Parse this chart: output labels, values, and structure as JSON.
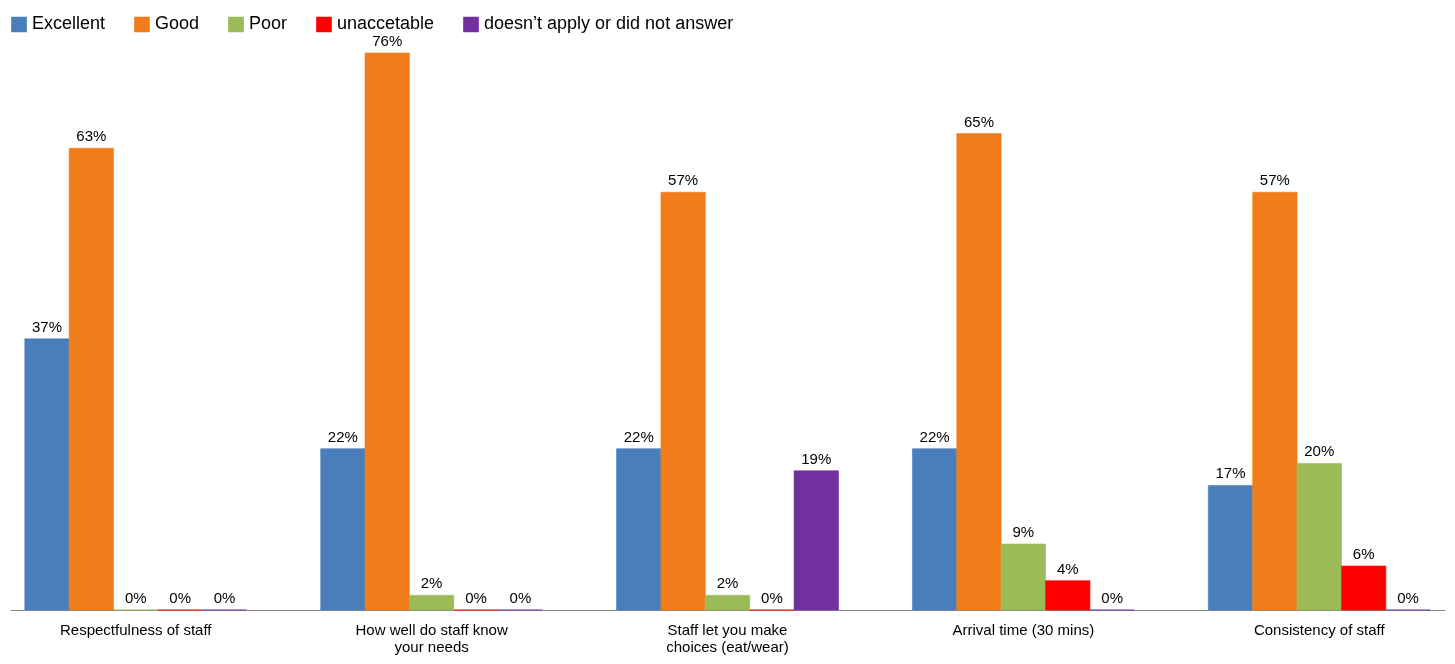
{
  "chart_data": {
    "type": "bar",
    "categories": [
      "Respectfulness of staff",
      "How well do staff know your needs",
      "Staff let you make choices (eat/wear)",
      "Arrival time (30 mins)",
      "Consistency of staff"
    ],
    "legend": "top",
    "series": [
      {
        "name": "Excellent",
        "color": "#4a7ebb",
        "values": [
          37,
          22,
          22,
          22,
          17
        ],
        "value_labels": [
          "37%",
          "22%",
          "22%",
          "22%",
          "17%"
        ]
      },
      {
        "name": "Good",
        "color": "#f07d1a",
        "values": [
          63,
          76,
          57,
          65,
          57
        ],
        "value_labels": [
          "63%",
          "76%",
          "57%",
          "65%",
          "57%"
        ]
      },
      {
        "name": "Poor",
        "color": "#9bbb59",
        "values": [
          0,
          2,
          2,
          9,
          20
        ],
        "value_labels": [
          "0%",
          "2%",
          "2%",
          "9%",
          "20%"
        ]
      },
      {
        "name": "unaccetable",
        "color": "#ff0000",
        "values": [
          0,
          0,
          0,
          4,
          6
        ],
        "value_labels": [
          "0%",
          "0%",
          "0%",
          "4%",
          "6%"
        ]
      },
      {
        "name": "doesn’t apply or did not answer",
        "color": "#7030a0",
        "values": [
          0,
          0,
          19,
          0,
          0
        ],
        "value_labels": [
          "0%",
          "0%",
          "19%",
          "0%",
          "0%"
        ]
      }
    ]
  }
}
